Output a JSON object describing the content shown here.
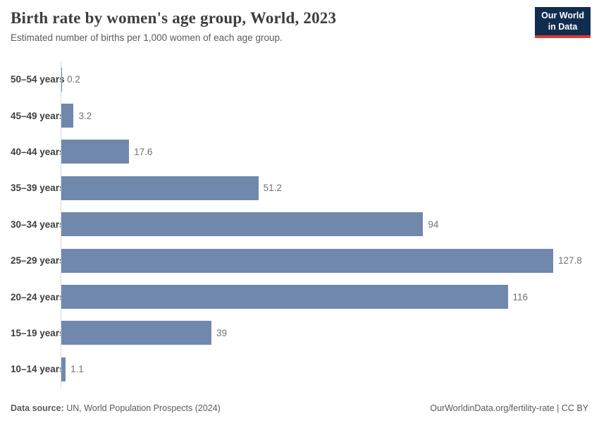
{
  "header": {
    "title": "Birth rate by women's age group, World, 2023",
    "subtitle": "Estimated number of births per 1,000 women of each age group."
  },
  "logo": {
    "line1": "Our World",
    "line2": "in Data",
    "bg_color": "#102d50",
    "accent_color": "#dc3a2c"
  },
  "chart_data": {
    "type": "bar",
    "orientation": "horizontal",
    "title": "Birth rate by women's age group, World, 2023",
    "subtitle": "Estimated number of births per 1,000 women of each age group.",
    "categories": [
      "50–54 years",
      "45–49 years",
      "40–44 years",
      "35–39 years",
      "30–34 years",
      "25–29 years",
      "20–24 years",
      "15–19 years",
      "10–14 years"
    ],
    "values": [
      0.2,
      3.2,
      17.6,
      51.2,
      94,
      127.8,
      116,
      39,
      1.1
    ],
    "value_labels": [
      "0.2",
      "3.2",
      "17.6",
      "51.2",
      "94",
      "127.8",
      "116",
      "39",
      "1.1"
    ],
    "xlim": [
      0,
      127.8
    ],
    "bar_color": "#7188ad",
    "grid": false,
    "legend": "none"
  },
  "footer": {
    "source_label": "Data source:",
    "source_text": " UN, World Population Prospects (2024)",
    "right_text": "OurWorldinData.org/fertility-rate | CC BY"
  }
}
